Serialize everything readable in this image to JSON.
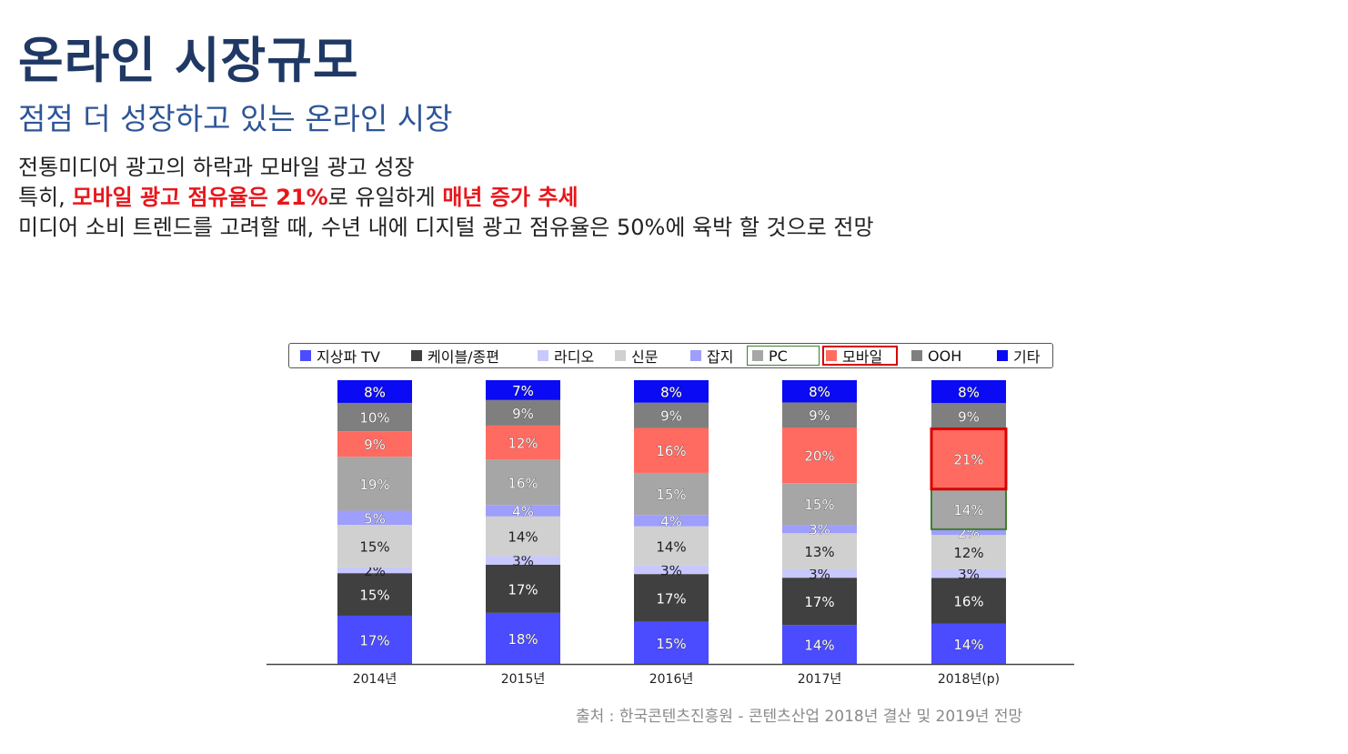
{
  "header": {
    "title": "온라인 시장규모",
    "subtitle": "점점 더 성장하고 있는 온라인 시장"
  },
  "body": {
    "line1": "전통미디어 광고의 하락과 모바일 광고 성장",
    "line2_prefix": "특히, ",
    "line2_highlight1": "모바일 광고 점유율은 21%",
    "line2_middle": "로 유일하게 ",
    "line2_highlight2": "매년 증가 추세",
    "line3": "미디어 소비 트렌드를 고려할 때, 수년 내에 디지털 광고 점유율은 50%에 육박 할 것으로 전망"
  },
  "colors": {
    "title": "#1f3864",
    "subtitle": "#2e5597",
    "highlight": "#e8161b",
    "mobile_box": "#d90000",
    "pc_box": "#3f7f2e"
  },
  "chart_data": {
    "type": "bar",
    "stacked": true,
    "categories": [
      "2014년",
      "2015년",
      "2016년",
      "2017년",
      "2018년(p)"
    ],
    "series": [
      {
        "name": "지상파 TV",
        "color": "#4b4bff",
        "values": [
          17,
          18,
          15,
          14,
          14
        ]
      },
      {
        "name": "케이블/종편",
        "color": "#404040",
        "values": [
          15,
          17,
          17,
          17,
          16
        ]
      },
      {
        "name": "라디오",
        "color": "#c8c8ff",
        "values": [
          2,
          3,
          3,
          3,
          3
        ]
      },
      {
        "name": "신문",
        "color": "#d0d0d0",
        "values": [
          15,
          14,
          14,
          13,
          12
        ]
      },
      {
        "name": "잡지",
        "color": "#9e9efc",
        "values": [
          5,
          4,
          4,
          3,
          2
        ]
      },
      {
        "name": "PC",
        "color": "#a6a6a6",
        "values": [
          19,
          16,
          15,
          15,
          14
        ]
      },
      {
        "name": "모바일",
        "color": "#ff6b61",
        "values": [
          9,
          12,
          16,
          20,
          21
        ]
      },
      {
        "name": "OOH",
        "color": "#7f7f7f",
        "values": [
          10,
          9,
          9,
          9,
          9
        ]
      },
      {
        "name": "기타",
        "color": "#0a0af5",
        "values": [
          8,
          7,
          8,
          8,
          8
        ]
      }
    ],
    "value_suffix": "%",
    "legend_position": "top",
    "highlight_legend": [
      "PC",
      "모바일"
    ],
    "highlight_category": "2018년(p)",
    "highlight_series": [
      "PC",
      "모바일"
    ]
  },
  "source": "출처 : 한국콘텐츠진흥원 - 콘텐츠산업 2018년 결산 및 2019년 전망"
}
